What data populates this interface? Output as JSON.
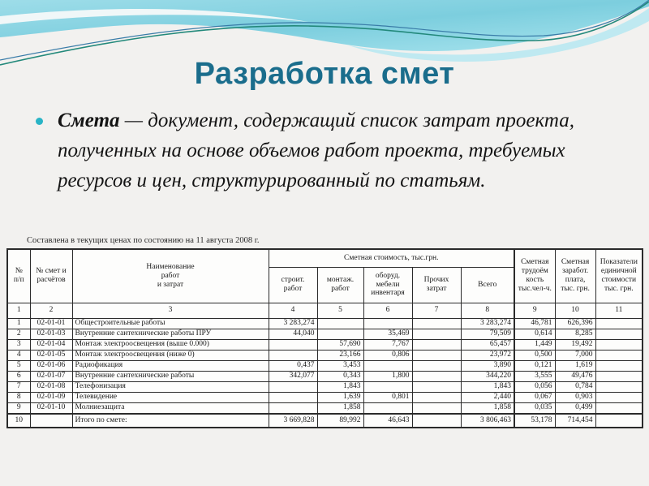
{
  "slide": {
    "title": "Разработка смет",
    "bullet": {
      "term": "Смета",
      "rest": " — документ, содержащий список затрат проекта, полученных на основе объемов работ проекта, требуемых ресурсов и цен, структурированный по статьям."
    }
  },
  "colors": {
    "title_text": "#1a6d8c",
    "bullet_dot": "#29b4c6",
    "wave_cyan": "#86d2e2",
    "wave_line_teal": "#23897b",
    "wave_line_blue": "#3a7ca8",
    "slide_background": "#f2f1ef"
  },
  "table": {
    "caption": "Составлена в текущих ценах по состоянию на 11 августа 2008 г.",
    "header": {
      "num": "№\nп/п",
      "estimate_no": "№ смет и\nрасчётов",
      "name": "Наименование\nработ\nи затрат",
      "cost_group": "Сметная стоимость, тыс.грн.",
      "cost_sub": [
        "строит.\nработ",
        "монтаж.\nработ",
        "оборуд.\nмебели\nинвентаря",
        "Прочих\nзатрат",
        "Всего"
      ],
      "labor": "Сметная\nтрудоём\nкость\nтыс.чел-ч.",
      "salary": "Сметная\nзаработ.\nплата,\nтыс. грн.",
      "unit_cost": "Показатели\nединичной\nстоимости\nтыс. грн."
    },
    "numbering": [
      "1",
      "2",
      "3",
      "4",
      "5",
      "6",
      "7",
      "8",
      "9",
      "10",
      "11"
    ],
    "rows": [
      [
        "1",
        "02-01-01",
        "Общестроительные работы",
        "3 283,274",
        "",
        "",
        "",
        "3 283,274",
        "46,781",
        "626,396",
        ""
      ],
      [
        "2",
        "02-01-03",
        "Внутренние сантехнические работы ПРУ",
        "44,040",
        "",
        "35,469",
        "",
        "79,509",
        "0,614",
        "8,285",
        ""
      ],
      [
        "3",
        "02-01-04",
        "Монтаж электроосвещения (выше 0.000)",
        "",
        "57,690",
        "7,767",
        "",
        "65,457",
        "1,449",
        "19,492",
        ""
      ],
      [
        "4",
        "02-01-05",
        "Монтаж электроосвещения (ниже 0)",
        "",
        "23,166",
        "0,806",
        "",
        "23,972",
        "0,500",
        "7,000",
        ""
      ],
      [
        "5",
        "02-01-06",
        "Радиофикация",
        "0,437",
        "3,453",
        "",
        "",
        "3,890",
        "0,121",
        "1,619",
        ""
      ],
      [
        "6",
        "02-01-07",
        "Внутренние сантехнические работы",
        "342,077",
        "0,343",
        "1,800",
        "",
        "344,220",
        "3,555",
        "49,476",
        ""
      ],
      [
        "7",
        "02-01-08",
        "Телефонизация",
        "",
        "1,843",
        "",
        "",
        "1,843",
        "0,056",
        "0,784",
        ""
      ],
      [
        "8",
        "02-01-09",
        "Телевидение",
        "",
        "1,639",
        "0,801",
        "",
        "2,440",
        "0,067",
        "0,903",
        ""
      ],
      [
        "9",
        "02-01-10",
        "Молниезащита",
        "",
        "1,858",
        "",
        "",
        "1,858",
        "0,035",
        "0,499",
        ""
      ],
      [
        "10",
        "",
        "Итого по смете:",
        "3 669,828",
        "89,992",
        "46,643",
        "",
        "3 806,463",
        "53,178",
        "714,454",
        ""
      ]
    ]
  }
}
